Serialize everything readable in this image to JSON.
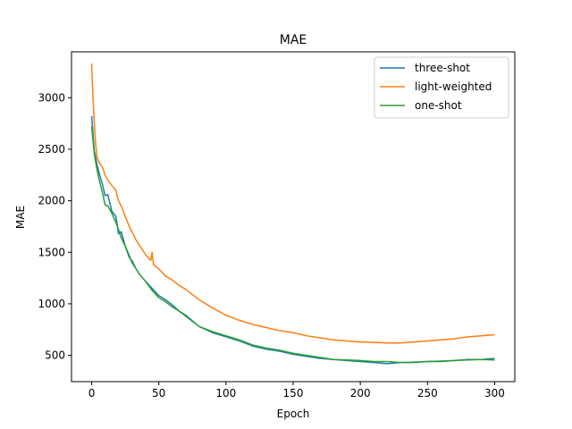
{
  "chart_data": {
    "type": "line",
    "title": "MAE",
    "xlabel": "Epoch",
    "ylabel": "MAE",
    "xlim": [
      -15,
      315
    ],
    "ylim": [
      245,
      3445
    ],
    "xticks": [
      0,
      50,
      100,
      150,
      200,
      250,
      300
    ],
    "yticks": [
      500,
      1000,
      1500,
      2000,
      2500,
      3000
    ],
    "grid": false,
    "legend_position": "top-right",
    "series": [
      {
        "name": "three-shot",
        "color": "#1f77b4",
        "x": [
          0,
          2,
          4,
          6,
          8,
          10,
          12,
          15,
          18,
          20,
          22,
          25,
          28,
          30,
          33,
          36,
          40,
          45,
          50,
          55,
          60,
          65,
          70,
          80,
          90,
          100,
          110,
          120,
          130,
          140,
          150,
          160,
          170,
          180,
          190,
          200,
          210,
          220,
          230,
          240,
          250,
          260,
          270,
          280,
          290,
          300
        ],
        "y": [
          2820,
          2480,
          2350,
          2250,
          2160,
          2050,
          2060,
          1900,
          1850,
          1680,
          1700,
          1560,
          1450,
          1420,
          1340,
          1280,
          1220,
          1150,
          1080,
          1040,
          990,
          930,
          890,
          780,
          720,
          680,
          640,
          590,
          560,
          540,
          510,
          490,
          470,
          460,
          450,
          440,
          430,
          420,
          430,
          430,
          440,
          440,
          450,
          460,
          460,
          470
        ]
      },
      {
        "name": "light-weighted",
        "color": "#ff7f0e",
        "x": [
          0,
          1,
          2,
          3,
          4,
          6,
          8,
          10,
          12,
          15,
          18,
          20,
          22,
          25,
          28,
          30,
          33,
          36,
          40,
          44,
          45,
          46,
          50,
          55,
          60,
          65,
          70,
          75,
          80,
          90,
          100,
          110,
          120,
          130,
          140,
          150,
          160,
          170,
          180,
          190,
          200,
          210,
          220,
          230,
          240,
          250,
          260,
          270,
          280,
          290,
          300
        ],
        "y": [
          3330,
          3000,
          2750,
          2550,
          2420,
          2360,
          2330,
          2250,
          2200,
          2150,
          2100,
          2000,
          1950,
          1850,
          1750,
          1700,
          1620,
          1560,
          1480,
          1420,
          1500,
          1380,
          1340,
          1270,
          1230,
          1180,
          1140,
          1090,
          1040,
          960,
          890,
          840,
          800,
          770,
          740,
          720,
          690,
          670,
          650,
          640,
          630,
          625,
          620,
          620,
          630,
          640,
          650,
          660,
          680,
          690,
          700
        ]
      },
      {
        "name": "one-shot",
        "color": "#2ca02c",
        "x": [
          0,
          2,
          4,
          6,
          8,
          10,
          12,
          15,
          18,
          20,
          22,
          25,
          28,
          30,
          33,
          36,
          40,
          45,
          50,
          55,
          60,
          65,
          70,
          80,
          90,
          100,
          110,
          120,
          130,
          140,
          150,
          160,
          170,
          180,
          190,
          200,
          210,
          220,
          230,
          240,
          250,
          260,
          270,
          280,
          290,
          300
        ],
        "y": [
          2720,
          2450,
          2300,
          2180,
          2080,
          1960,
          1950,
          1880,
          1790,
          1720,
          1640,
          1560,
          1470,
          1400,
          1340,
          1280,
          1220,
          1130,
          1060,
          1020,
          970,
          930,
          880,
          780,
          730,
          690,
          650,
          600,
          570,
          550,
          520,
          500,
          480,
          460,
          455,
          450,
          440,
          440,
          430,
          435,
          440,
          445,
          450,
          455,
          460,
          455
        ]
      }
    ]
  }
}
